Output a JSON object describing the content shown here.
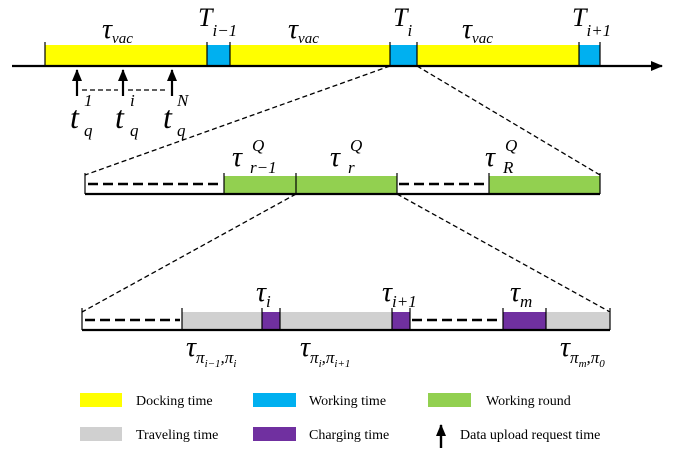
{
  "colors": {
    "docking": "#ffff00",
    "working": "#00b0f0",
    "round": "#92d050",
    "traveling": "#d0d0d0",
    "charging": "#7030a0",
    "line": "#000000"
  },
  "timeline_top": {
    "vac_label": {
      "base": "τ",
      "sub": "vac"
    },
    "T_prev": {
      "base": "T",
      "sub": "i−1"
    },
    "T_cur": {
      "base": "T",
      "sub": "i"
    },
    "T_next": {
      "base": "T",
      "sub": "i+1"
    },
    "requests": [
      {
        "base": "t",
        "sup": "1",
        "sub": "q"
      },
      {
        "base": "t",
        "sup": "i",
        "sub": "q"
      },
      {
        "base": "t",
        "sup": "N",
        "sub": "q"
      }
    ]
  },
  "timeline_mid": {
    "rounds": [
      {
        "base": "τ",
        "sup": "Q",
        "sub": "r−1"
      },
      {
        "base": "τ",
        "sup": "Q",
        "sub": "r"
      },
      {
        "base": "τ",
        "sup": "Q",
        "sub": "R"
      }
    ]
  },
  "timeline_bottom": {
    "charge_i": {
      "base": "τ",
      "sub": "i"
    },
    "charge_next": {
      "base": "τ",
      "sub": "i+1"
    },
    "charge_m": {
      "base": "τ",
      "sub": "m"
    },
    "travel_prev": {
      "base": "τ",
      "sub": "π",
      "subsub1": "i−1",
      "sep": ",π",
      "subsub2": "i"
    },
    "travel_cur": {
      "base": "τ",
      "sub": "π",
      "subsub1": "i",
      "sep": ",π",
      "subsub2": "i+1"
    },
    "travel_last": {
      "base": "τ",
      "sub": "π",
      "subsub1": "m",
      "sep": ",π",
      "subsub2": "0"
    }
  },
  "legend": {
    "docking": "Docking time",
    "working": "Working time",
    "round": "Working round",
    "traveling": "Traveling time",
    "charging": "Charging time",
    "request": "Data upload request time"
  }
}
